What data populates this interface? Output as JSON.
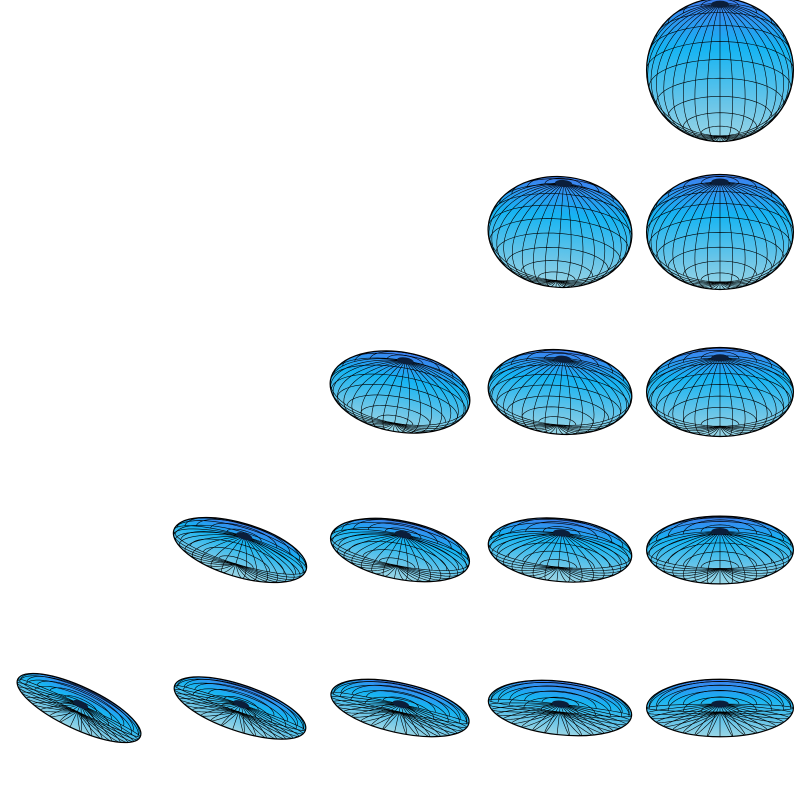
{
  "figure": {
    "rows": 5,
    "cols": 5,
    "colors": {
      "background": "#ffffff",
      "top": "#3f7ff0",
      "middle": "#16b4f2",
      "bottom": "#9ad6e6",
      "wire": "#000000"
    },
    "ellipsoids": [
      {
        "row": 1,
        "col": 5
      },
      {
        "row": 2,
        "col": 4
      },
      {
        "row": 2,
        "col": 5
      },
      {
        "row": 3,
        "col": 3
      },
      {
        "row": 3,
        "col": 4
      },
      {
        "row": 3,
        "col": 5
      },
      {
        "row": 4,
        "col": 2
      },
      {
        "row": 4,
        "col": 3
      },
      {
        "row": 4,
        "col": 4
      },
      {
        "row": 4,
        "col": 5
      },
      {
        "row": 5,
        "col": 1
      },
      {
        "row": 5,
        "col": 2
      },
      {
        "row": 5,
        "col": 3
      },
      {
        "row": 5,
        "col": 4
      },
      {
        "row": 5,
        "col": 5
      }
    ]
  }
}
